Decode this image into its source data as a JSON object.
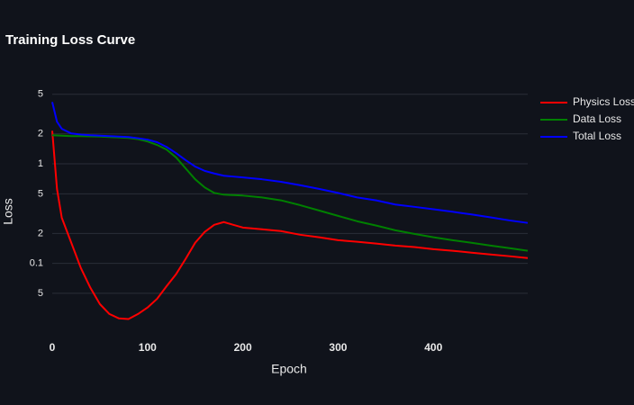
{
  "chart_data": {
    "type": "line",
    "title": "Training Loss Curve",
    "xlabel": "Epoch",
    "ylabel": "Loss",
    "log_y": true,
    "grid": true,
    "legend": "right",
    "x": [
      0,
      5,
      10,
      20,
      30,
      40,
      50,
      60,
      70,
      80,
      90,
      100,
      110,
      120,
      130,
      140,
      150,
      160,
      170,
      180,
      190,
      200,
      220,
      240,
      260,
      280,
      300,
      320,
      340,
      360,
      380,
      400,
      420,
      440,
      460,
      480,
      499
    ],
    "series": [
      {
        "name": "Physics Loss",
        "color": "#ff0000",
        "values": [
          2.15,
          0.56,
          0.288,
          0.161,
          0.09,
          0.057,
          0.039,
          0.031,
          0.028,
          0.0276,
          0.031,
          0.036,
          0.044,
          0.059,
          0.078,
          0.111,
          0.161,
          0.207,
          0.244,
          0.26,
          0.244,
          0.229,
          0.22,
          0.211,
          0.194,
          0.183,
          0.171,
          0.165,
          0.158,
          0.151,
          0.146,
          0.139,
          0.134,
          0.128,
          0.123,
          0.118,
          0.113
        ]
      },
      {
        "name": "Data Loss",
        "color": "#008000",
        "values": [
          1.94,
          1.93,
          1.92,
          1.9,
          1.9,
          1.89,
          1.88,
          1.86,
          1.84,
          1.82,
          1.77,
          1.68,
          1.55,
          1.39,
          1.16,
          0.9,
          0.7,
          0.58,
          0.51,
          0.49,
          0.485,
          0.48,
          0.46,
          0.43,
          0.385,
          0.34,
          0.3,
          0.265,
          0.24,
          0.215,
          0.198,
          0.183,
          0.171,
          0.161,
          0.151,
          0.142,
          0.134
        ]
      },
      {
        "name": "Total Loss",
        "color": "#0000ff",
        "values": [
          4.18,
          2.65,
          2.25,
          2.02,
          1.97,
          1.94,
          1.92,
          1.9,
          1.88,
          1.86,
          1.81,
          1.75,
          1.65,
          1.48,
          1.28,
          1.09,
          0.94,
          0.85,
          0.8,
          0.76,
          0.745,
          0.73,
          0.7,
          0.66,
          0.61,
          0.56,
          0.51,
          0.46,
          0.43,
          0.39,
          0.37,
          0.35,
          0.33,
          0.31,
          0.29,
          0.27,
          0.255
        ]
      }
    ],
    "xlim": [
      0,
      499
    ],
    "xticks": [
      0,
      100,
      200,
      300,
      400
    ],
    "ylim": [
      0.018,
      6
    ],
    "yticks": [
      5,
      2,
      1,
      {
        "value": 0.5,
        "label": "5"
      },
      {
        "value": 0.2,
        "label": "2"
      },
      0.1,
      {
        "value": 0.05,
        "label": "5"
      }
    ]
  }
}
